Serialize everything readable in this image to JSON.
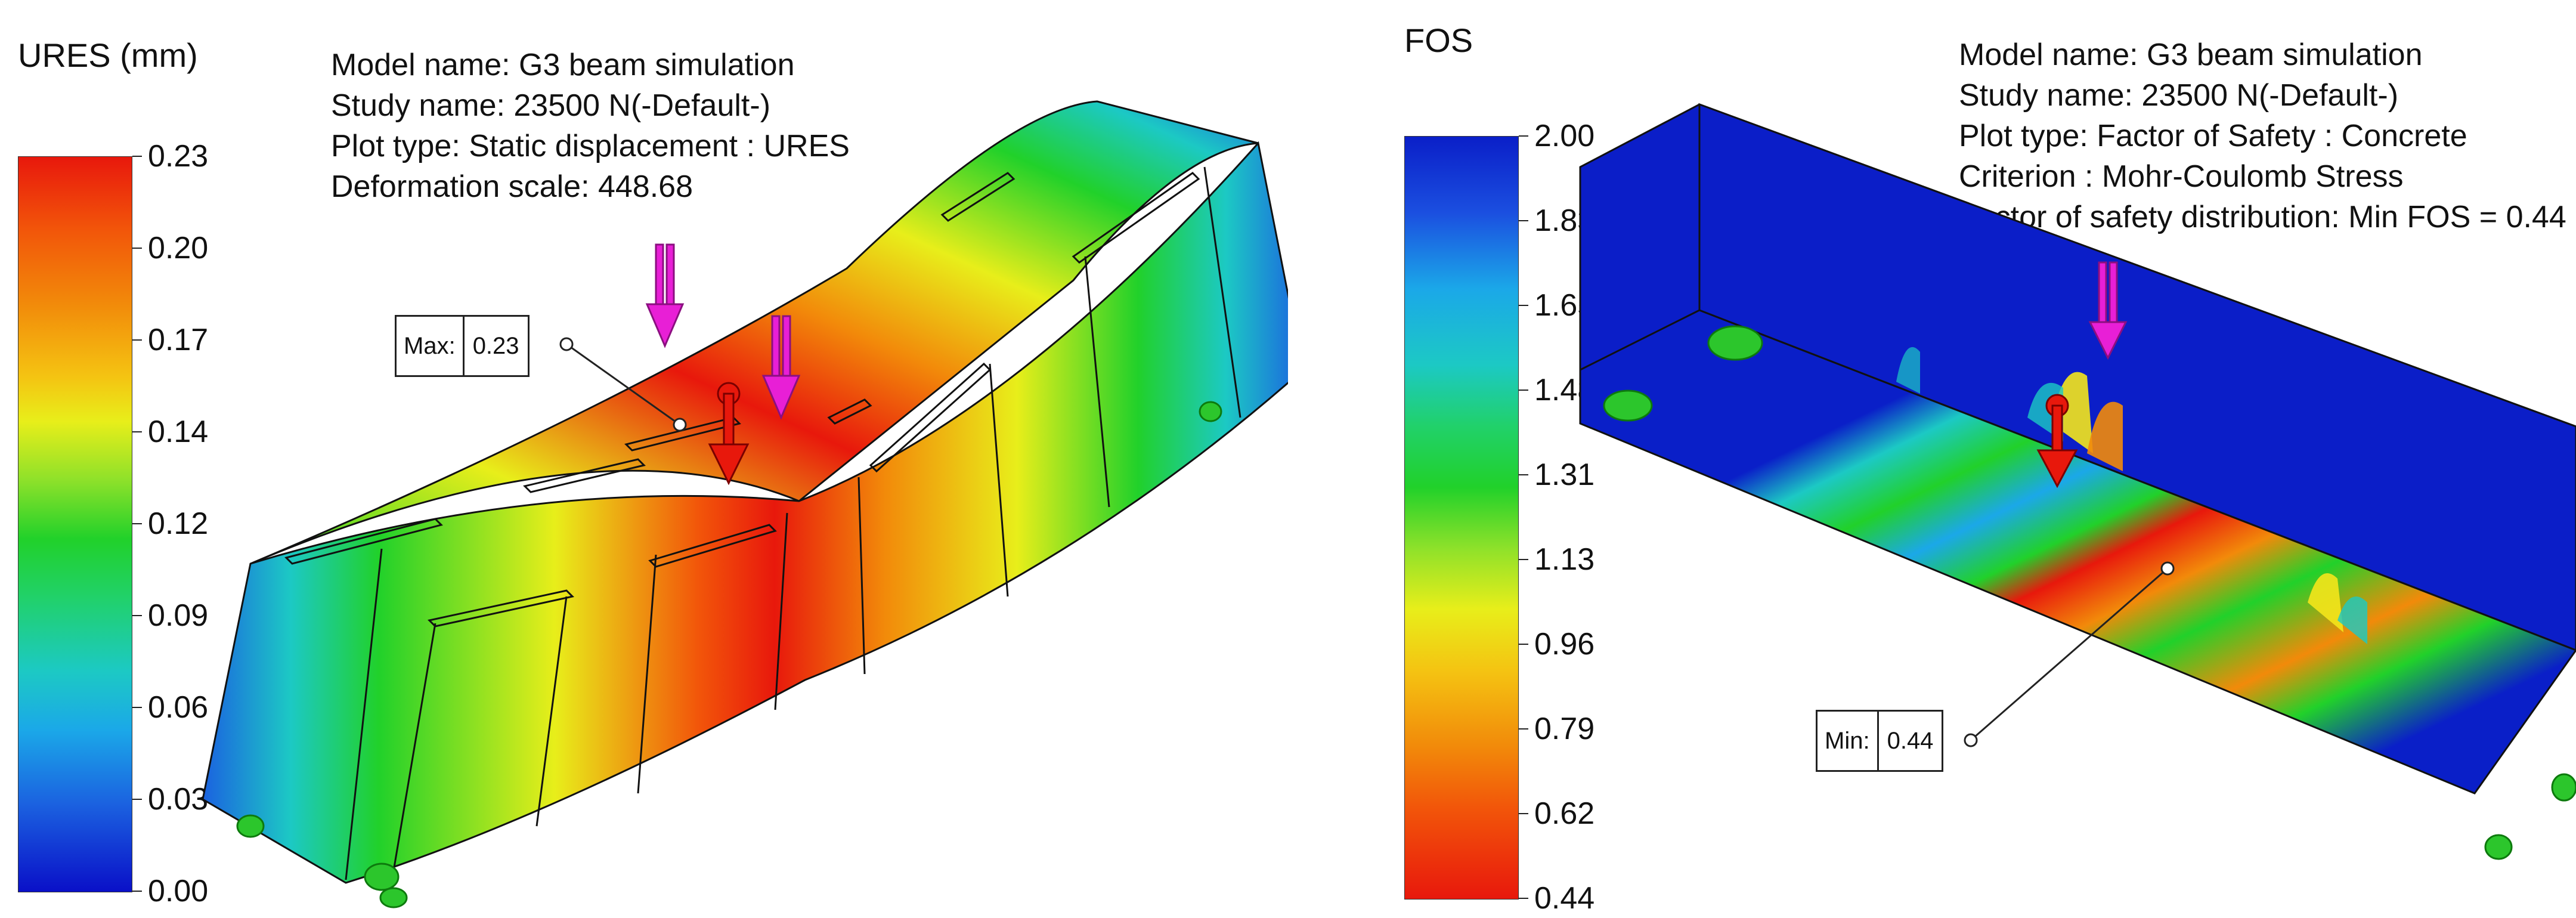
{
  "left": {
    "legend_title": "URES (mm)",
    "ticks": [
      "0.23",
      "0.20",
      "0.17",
      "0.14",
      "0.12",
      "0.09",
      "0.06",
      "0.03",
      "0.00"
    ],
    "info": [
      "Model name: G3 beam simulation",
      "Study name: 23500 N(-Default-)",
      "Plot type: Static displacement : URES",
      "Deformation scale: 448.68"
    ],
    "probe": {
      "key": "Max:",
      "value": "0.23"
    },
    "colors": {
      "top": "#e8180c",
      "high": "#f28a0a",
      "mid_high": "#f4e61b",
      "mid": "#21d12a",
      "mid_low": "#1cc9c4",
      "low": "#1b62e0",
      "bottom": "#0a10c8"
    }
  },
  "right": {
    "legend_title": "FOS",
    "ticks": [
      "2.00",
      "1.83",
      "1.65",
      "1.48",
      "1.31",
      "1.13",
      "0.96",
      "0.79",
      "0.62",
      "0.44"
    ],
    "info": [
      "Model name: G3 beam simulation",
      "Study name: 23500 N(-Default-)",
      "Plot type: Factor of Safety : Concrete",
      "Criterion : Mohr-Coulomb Stress",
      "Factor of safety distribution: Min FOS = 0.44"
    ],
    "probe": {
      "key": "Min:",
      "value": "0.44"
    },
    "colors": {
      "top": "#0a1fc8",
      "mid": "#21d12a",
      "low_mid": "#f4e61b",
      "bottom": "#e8180c"
    }
  },
  "icons": {
    "load_arrow": "magenta-force-arrow-icon",
    "remote_load": "red-force-arrow-icon",
    "fixture": "green-fixture-icon"
  }
}
